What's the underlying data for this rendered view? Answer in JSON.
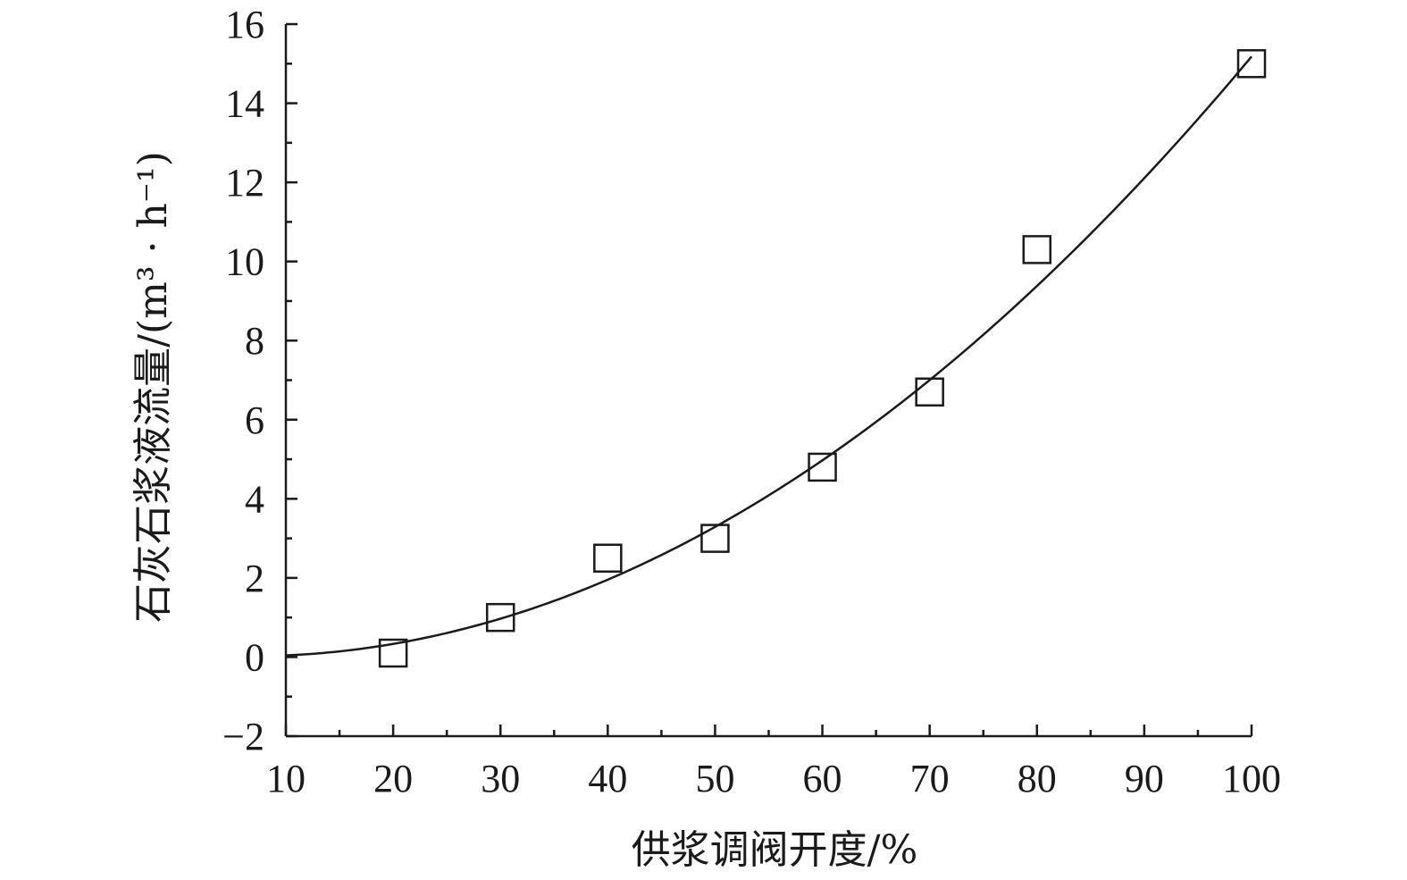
{
  "chart_data": {
    "type": "scatter",
    "xlabel": "供浆调阀开度/%",
    "ylabel": "石灰石浆液流量/(m³ · h⁻¹)",
    "xlim": [
      10,
      100
    ],
    "ylim": [
      -2,
      16
    ],
    "x_ticks": [
      10,
      20,
      30,
      40,
      50,
      60,
      70,
      80,
      90,
      100
    ],
    "x_tick_labels": [
      "10",
      "20",
      "30",
      "40",
      "50",
      "60",
      "70",
      "80",
      "90",
      "100"
    ],
    "y_ticks": [
      -2,
      0,
      2,
      4,
      6,
      8,
      10,
      12,
      14,
      16
    ],
    "y_tick_labels": [
      "−2",
      "0",
      "2",
      "4",
      "6",
      "8",
      "10",
      "12",
      "14",
      "16"
    ],
    "x_minor_step": 5,
    "y_minor_step": 1,
    "grid": false,
    "series": [
      {
        "marker": "open-square",
        "points": [
          {
            "x": 20,
            "y": 0.1
          },
          {
            "x": 30,
            "y": 1.0
          },
          {
            "x": 40,
            "y": 2.5
          },
          {
            "x": 50,
            "y": 3.0
          },
          {
            "x": 60,
            "y": 4.8
          },
          {
            "x": 70,
            "y": 6.7
          },
          {
            "x": 80,
            "y": 10.3
          },
          {
            "x": 100,
            "y": 15.0
          }
        ]
      },
      {
        "style": "solid-line",
        "x_range": [
          10,
          100
        ],
        "quadratic_coefficients": [
          0.1,
          -0.0232,
          0.00174
        ]
      }
    ]
  }
}
